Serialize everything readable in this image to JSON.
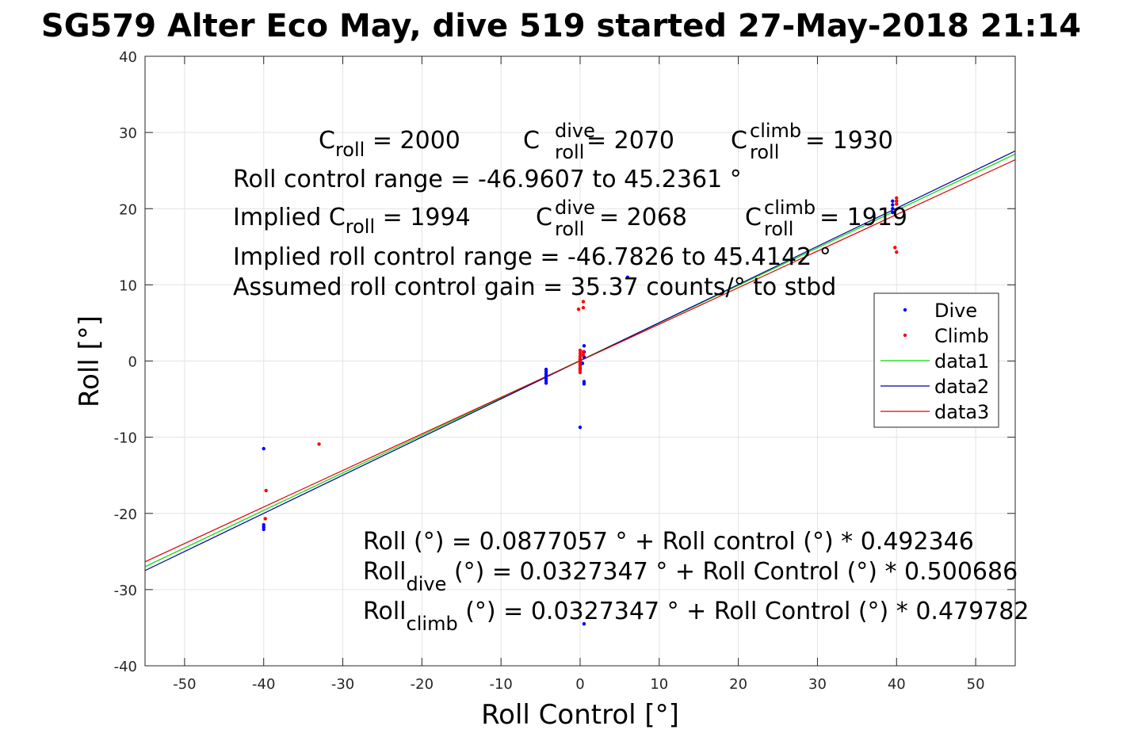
{
  "chart_data": {
    "type": "scatter",
    "title": "SG579 Alter Eco May, dive 519 started 27-May-2018 21:14",
    "xlabel": "Roll Control [°]",
    "ylabel": "Roll [°]",
    "xlim": [
      -55,
      55
    ],
    "ylim": [
      -40,
      40
    ],
    "xticks": [
      -50,
      -40,
      -30,
      -20,
      -10,
      0,
      10,
      20,
      30,
      40,
      50
    ],
    "yticks": [
      -40,
      -30,
      -20,
      -10,
      0,
      10,
      20,
      30,
      40
    ],
    "grid": true,
    "legend_position": "right",
    "series": [
      {
        "name": "Dive",
        "kind": "points",
        "color": "#0000ff",
        "points": [
          [
            -40,
            -11.5
          ],
          [
            -40,
            -21.5
          ],
          [
            -40,
            -21.8
          ],
          [
            -40,
            -22.1
          ],
          [
            -4.3,
            -1.1
          ],
          [
            -4.3,
            -1.4
          ],
          [
            -4.3,
            -1.7
          ],
          [
            -4.3,
            -2.0
          ],
          [
            -4.3,
            -2.3
          ],
          [
            -4.3,
            -2.6
          ],
          [
            -4.3,
            -2.9
          ],
          [
            0,
            0.2
          ],
          [
            0,
            -0.5
          ],
          [
            0,
            -1.0
          ],
          [
            0,
            -8.7
          ],
          [
            0.3,
            -0.3
          ],
          [
            0.5,
            2.0
          ],
          [
            0.5,
            1.2
          ],
          [
            0.5,
            0.5
          ],
          [
            0.5,
            -2.7
          ],
          [
            0.5,
            -3.0
          ],
          [
            0.5,
            -34.5
          ],
          [
            6,
            11
          ],
          [
            39.5,
            21
          ],
          [
            39.5,
            20.5
          ],
          [
            39.5,
            20
          ],
          [
            39.5,
            19.5
          ]
        ]
      },
      {
        "name": "Climb",
        "kind": "points",
        "color": "#ff0000",
        "points": [
          [
            -39.7,
            -17
          ],
          [
            -39.8,
            -20.7
          ],
          [
            -33,
            -10.9
          ],
          [
            -0.2,
            6.8
          ],
          [
            0,
            1.4
          ],
          [
            0,
            1.0
          ],
          [
            0,
            0.6
          ],
          [
            0,
            0.3
          ],
          [
            0,
            0
          ],
          [
            0,
            -0.3
          ],
          [
            0,
            -0.6
          ],
          [
            0,
            -0.9
          ],
          [
            0,
            -1.2
          ],
          [
            0,
            -1.5
          ],
          [
            0.4,
            7.8
          ],
          [
            0.4,
            7.0
          ],
          [
            0.4,
            1.2
          ],
          [
            0.4,
            0.8
          ],
          [
            40,
            21.4
          ],
          [
            40,
            21.0
          ],
          [
            40,
            20.6
          ],
          [
            39.8,
            14.9
          ],
          [
            40,
            14.3
          ]
        ]
      },
      {
        "name": "data1",
        "kind": "line",
        "color": "#00dd00",
        "intercept": 0.0877057,
        "slope": 0.492346
      },
      {
        "name": "data2",
        "kind": "line",
        "color": "#000099",
        "intercept": 0.0327347,
        "slope": 0.500686
      },
      {
        "name": "data3",
        "kind": "line",
        "color": "#dd0000",
        "intercept": 0.0327347,
        "slope": 0.479782
      }
    ],
    "annotations": {
      "c_roll": {
        "base": "C",
        "sub": "roll",
        "value": " = 2000"
      },
      "c_roll_dive": {
        "base": "C",
        "sup": "dive",
        "sub": "roll",
        "value": " = 2070"
      },
      "c_roll_climb": {
        "base": "C",
        "sup": "climb",
        "sub": "roll",
        "value": " = 1930"
      },
      "range": "Roll control range = -46.9607 to 45.2361 °",
      "implied_c_roll": {
        "prefix": "Implied C",
        "sub": "roll",
        "value": " = 1994"
      },
      "implied_c_roll_dive": {
        "base": "C",
        "sup": "dive",
        "sub": "roll",
        "value": " = 2068"
      },
      "implied_c_roll_climb": {
        "base": "C",
        "sup": "climb",
        "sub": "roll",
        "value": " = 1919"
      },
      "implied_range": "Implied roll control range = -46.7826 to 45.4142 °",
      "gain": "Assumed roll control gain = 35.37 counts/° to stbd",
      "fit": "Roll (°) = 0.0877057 ° + Roll control (°) * 0.492346",
      "fit_dive": {
        "base": "Roll",
        "sub": "dive",
        "rest": " (°) = 0.0327347 ° + Roll Control (°) * 0.500686"
      },
      "fit_climb": {
        "base": "Roll",
        "sub": "climb",
        "rest": " (°) = 0.0327347 ° + Roll Control (°) * 0.479782"
      }
    }
  }
}
